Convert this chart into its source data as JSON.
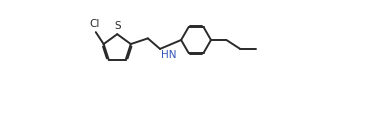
{
  "bg_color": "#ffffff",
  "line_color": "#2a2a2a",
  "n_color": "#3355bb",
  "line_width": 1.4,
  "dbo": 0.006,
  "figsize": [
    3.9,
    1.24
  ],
  "dpi": 100,
  "xlim": [
    0.0,
    1.0
  ],
  "ylim": [
    0.0,
    0.55
  ]
}
